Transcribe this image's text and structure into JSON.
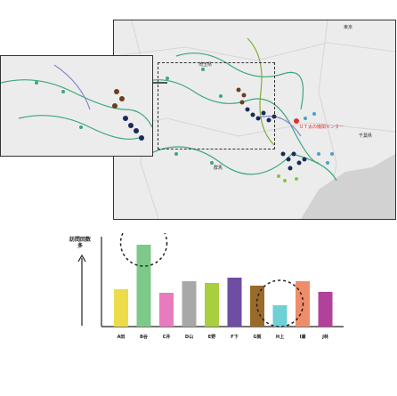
{
  "map": {
    "labels": {
      "tokyo": "東京",
      "saitama": "埼玉県",
      "chiba": "千葉県",
      "center": "ＵＴ太の機関センター",
      "gunma": "群馬"
    }
  },
  "chart_data": {
    "type": "bar",
    "ylabel": "訪問回数\n多",
    "categories": [
      "A田",
      "B谷",
      "C井",
      "D山",
      "E野",
      "F下",
      "G賀",
      "H上",
      "I瀬",
      "J林"
    ],
    "values": [
      42,
      92,
      38,
      51,
      49,
      55,
      46,
      24,
      51,
      39
    ],
    "ylim": [
      0,
      100
    ],
    "colors": [
      "#eddc4a",
      "#7cc98a",
      "#e77bbd",
      "#a8a8a8",
      "#a8cf3d",
      "#6e4ea3",
      "#9a6a2a",
      "#6fd0d6",
      "#ef8d6a",
      "#b2419a"
    ],
    "highlighted": [
      "B谷",
      "H上"
    ]
  }
}
